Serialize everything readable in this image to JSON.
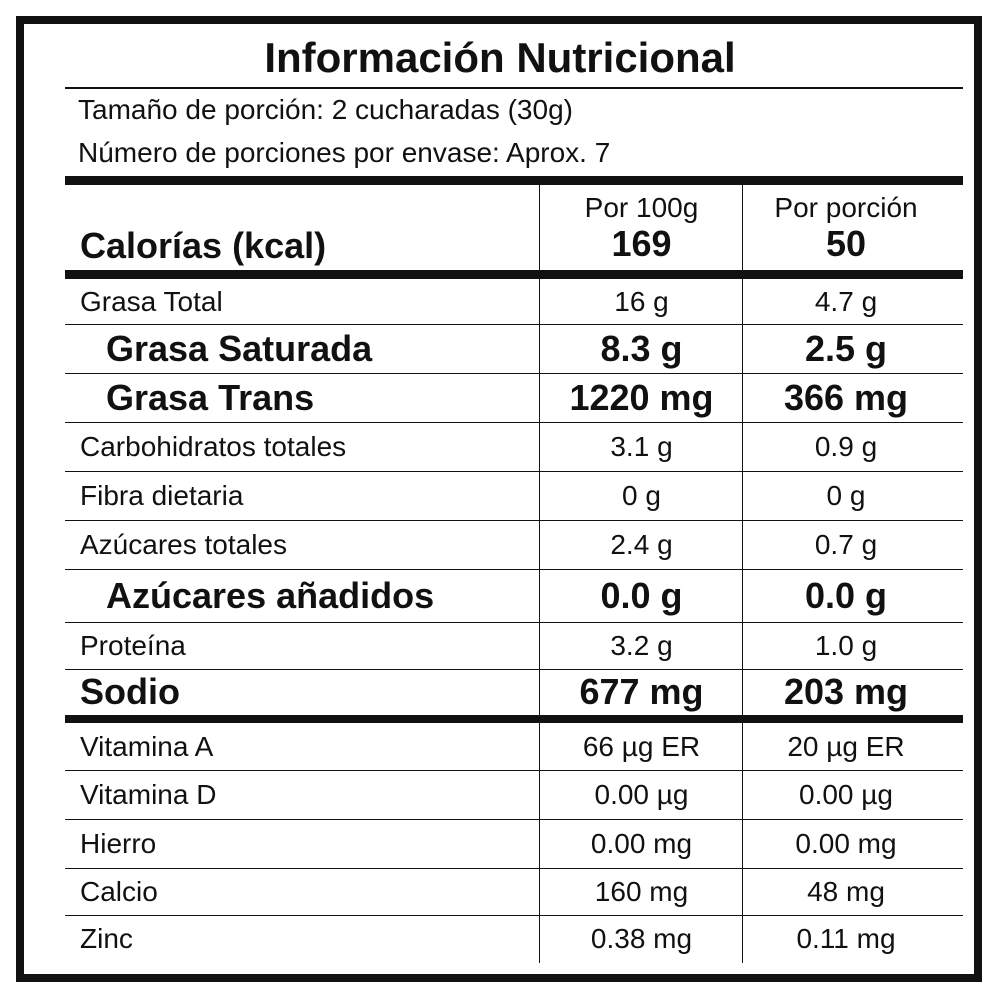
{
  "title": "Información Nutricional",
  "serving_size": "Tamaño de porción: 2 cucharadas (30g)",
  "servings_per_container": "Número de porciones por envase: Aprox. 7",
  "header": {
    "calories_label": "Calorías (kcal)",
    "col1_label": "Por 100g",
    "col2_label": "Por porción",
    "calories_per_100g": "169",
    "calories_per_serving": "50"
  },
  "rows": [
    {
      "label": "Grasa Total",
      "per100": "16 g",
      "perServing": "4.7 g"
    },
    {
      "label": "Grasa Saturada",
      "per100": "8.3 g",
      "perServing": "2.5 g"
    },
    {
      "label": "Grasa Trans",
      "per100": "1220 mg",
      "perServing": "366 mg"
    },
    {
      "label": "Carbohidratos totales",
      "per100": "3.1 g",
      "perServing": "0.9 g"
    },
    {
      "label": "Fibra dietaria",
      "per100": "0 g",
      "perServing": "0 g"
    },
    {
      "label": "Azúcares totales",
      "per100": "2.4 g",
      "perServing": "0.7 g"
    },
    {
      "label": "Azúcares añadidos",
      "per100": "0.0 g",
      "perServing": "0.0 g"
    },
    {
      "label": "Proteína",
      "per100": "3.2 g",
      "perServing": "1.0 g"
    },
    {
      "label": "Sodio",
      "per100": "677 mg",
      "perServing": "203 mg"
    },
    {
      "label": "Vitamina A",
      "per100": "66 µg ER",
      "perServing": "20 µg ER"
    },
    {
      "label": "Vitamina D",
      "per100": "0.00 µg",
      "perServing": "0.00 µg"
    },
    {
      "label": "Hierro",
      "per100": "0.00 mg",
      "perServing": "0.00 mg"
    },
    {
      "label": "Calcio",
      "per100": "160 mg",
      "perServing": "48 mg"
    },
    {
      "label": "Zinc",
      "per100": "0.38 mg",
      "perServing": "0.11 mg"
    }
  ]
}
